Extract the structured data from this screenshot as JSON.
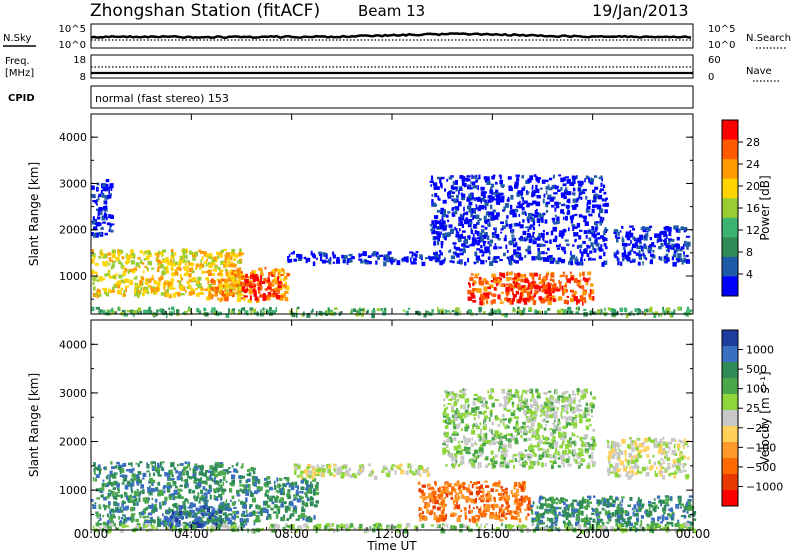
{
  "header": {
    "station": "Zhongshan Station (fitACF)",
    "beam": "Beam 13",
    "date": "19/Jan/2013"
  },
  "noise_panel": {
    "left_label": "N.Sky",
    "left_ticks": [
      "10^5",
      "10^0"
    ],
    "right_label": "N.Search",
    "right_ticks": [
      "10^5",
      "10^0"
    ]
  },
  "freq_panel": {
    "left_label_1": "Freq.",
    "left_label_2": "[MHz]",
    "left_ticks": [
      "18",
      "8"
    ],
    "right_label": "Nave",
    "right_ticks": [
      "60",
      "0"
    ]
  },
  "cpid_panel": {
    "label": "CPID",
    "text": "normal (fast stereo) 153"
  },
  "chart_data": [
    {
      "type": "heatmap",
      "quantity": "power",
      "ylabel": "Slant Range [km]",
      "ylim": [
        180,
        4500
      ],
      "yticks": [
        "4000",
        "3000",
        "2000",
        "1000"
      ],
      "xlim_hours": [
        0,
        24
      ],
      "xticks": [
        "00:00",
        "04:00",
        "08:00",
        "12:00",
        "16:00",
        "20:00",
        "00:00"
      ],
      "colorbar": {
        "label": "Power [dB]",
        "ticks": [
          "28",
          "24",
          "20",
          "16",
          "12",
          "8",
          "4"
        ],
        "colors": [
          "#ff0000",
          "#ff5a00",
          "#ff9a00",
          "#ffd400",
          "#9acd32",
          "#3cb371",
          "#2e8b57",
          "#1e5aa8",
          "#0000ff"
        ]
      },
      "regions": [
        {
          "t0": 0.0,
          "t1": 6.0,
          "r0": 600,
          "r1": 1600,
          "level": 3
        },
        {
          "t0": 0.0,
          "t1": 0.8,
          "r0": 1900,
          "r1": 3100,
          "level": 8
        },
        {
          "t0": 4.5,
          "t1": 7.8,
          "r0": 500,
          "r1": 1200,
          "level": 2
        },
        {
          "t0": 6.0,
          "t1": 7.5,
          "r0": 550,
          "r1": 1050,
          "level": 0
        },
        {
          "t0": 7.8,
          "t1": 13.5,
          "r0": 1300,
          "r1": 1550,
          "level": 8
        },
        {
          "t0": 13.5,
          "t1": 20.5,
          "r0": 1300,
          "r1": 3200,
          "level": 8
        },
        {
          "t0": 15.0,
          "t1": 20.0,
          "r0": 450,
          "r1": 1100,
          "level": 1
        },
        {
          "t0": 16.5,
          "t1": 18.5,
          "r0": 500,
          "r1": 900,
          "level": 0
        },
        {
          "t0": 20.8,
          "t1": 23.8,
          "r0": 1300,
          "r1": 2100,
          "level": 8
        },
        {
          "t0": 0.0,
          "t1": 24.0,
          "r0": 190,
          "r1": 340,
          "level": 5
        }
      ]
    },
    {
      "type": "heatmap",
      "quantity": "velocity",
      "ylabel": "Slant Range [km]",
      "ylim": [
        180,
        4500
      ],
      "yticks": [
        "4000",
        "3000",
        "2000",
        "1000"
      ],
      "xlim_hours": [
        0,
        24
      ],
      "xticks": [
        "00:00",
        "04:00",
        "08:00",
        "12:00",
        "16:00",
        "20:00",
        "00:00"
      ],
      "xlabel": "Time UT",
      "colorbar": {
        "label": "Velocity [m s⁻¹]",
        "ticks": [
          "1000",
          "500",
          "100",
          "25",
          "−25",
          "−100",
          "−500",
          "−1000"
        ],
        "colors": [
          "#1e3c9c",
          "#3a6ebf",
          "#2e8b57",
          "#4aa84a",
          "#8ed63c",
          "#c8c8c8",
          "#ffd05a",
          "#ff9a2a",
          "#ff6a00",
          "#e83a00",
          "#ff0000"
        ]
      },
      "regions": [
        {
          "t0": 0.0,
          "t1": 6.5,
          "r0": 300,
          "r1": 1600,
          "level": 2
        },
        {
          "t0": 3.0,
          "t1": 5.5,
          "r0": 250,
          "r1": 700,
          "level": 1
        },
        {
          "t0": 6.5,
          "t1": 9.0,
          "r0": 400,
          "r1": 1300,
          "level": 2
        },
        {
          "t0": 8.0,
          "t1": 13.5,
          "r0": 1300,
          "r1": 1550,
          "level": 5
        },
        {
          "t0": 13.0,
          "t1": 17.5,
          "r0": 400,
          "r1": 1200,
          "level": 8
        },
        {
          "t0": 14.0,
          "t1": 20.0,
          "r0": 1500,
          "r1": 3100,
          "level": 4
        },
        {
          "t0": 17.5,
          "t1": 24.0,
          "r0": 200,
          "r1": 900,
          "level": 2
        },
        {
          "t0": 20.5,
          "t1": 23.8,
          "r0": 1300,
          "r1": 2100,
          "level": 5
        },
        {
          "t0": 0.0,
          "t1": 24.0,
          "r0": 190,
          "r1": 330,
          "level": 4
        }
      ]
    }
  ]
}
